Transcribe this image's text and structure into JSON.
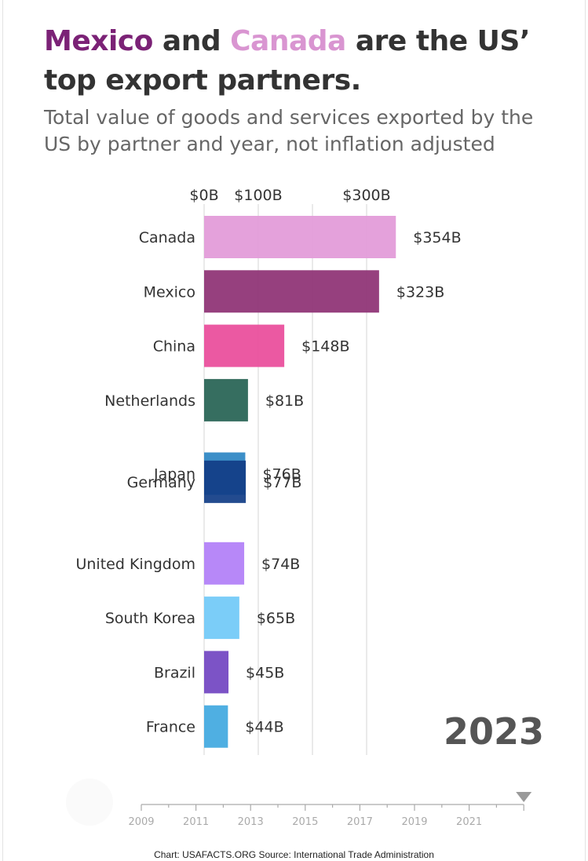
{
  "header": {
    "title_highlight_1": "Mexico",
    "title_connector": " and ",
    "title_highlight_2": "Canada",
    "title_rest": " are the US’ top export partners.",
    "subtitle": "Total value of goods and services exported by the US by partner and year, not inflation adjusted",
    "colors": {
      "mexico": "#7b2276",
      "canada": "#d995d1"
    }
  },
  "chart_data": {
    "type": "bar",
    "orientation": "horizontal",
    "year": "2023",
    "x_ticks": [
      {
        "value": 0,
        "label": "$0B"
      },
      {
        "value": 100,
        "label": "$100B"
      },
      {
        "value": 200,
        "label": ""
      },
      {
        "value": 300,
        "label": "$300B"
      }
    ],
    "xlim": [
      0,
      354
    ],
    "grid": true,
    "bars": [
      {
        "name": "Canada",
        "value": 354,
        "label": "$354B",
        "color": "#e29ad8",
        "slot": 0
      },
      {
        "name": "Mexico",
        "value": 323,
        "label": "$323B",
        "color": "#8e3174",
        "slot": 1
      },
      {
        "name": "China",
        "value": 148,
        "label": "$148B",
        "color": "#ea4c9b",
        "slot": 2
      },
      {
        "name": "Netherlands",
        "value": 81,
        "label": "$81B",
        "color": "#276354",
        "slot": 3
      },
      {
        "name": "Japan",
        "value": 76,
        "label": "$76B",
        "color": "#2d87c4",
        "slot": 4.35
      },
      {
        "name": "Germany",
        "value": 77,
        "label": "$77B",
        "color": "#123d86",
        "slot": 4.5
      },
      {
        "name": "United Kingdom",
        "value": 74,
        "label": "$74B",
        "color": "#b17ff8",
        "slot": 6
      },
      {
        "name": "South Korea",
        "value": 65,
        "label": "$65B",
        "color": "#71c9f8",
        "slot": 7
      },
      {
        "name": "Brazil",
        "value": 45,
        "label": "$45B",
        "color": "#7246c2",
        "slot": 8
      },
      {
        "name": "France",
        "value": 44,
        "label": "$44B",
        "color": "#42a9e0",
        "slot": 9
      }
    ]
  },
  "timeline": {
    "labels": [
      "2009",
      "2011",
      "2013",
      "2015",
      "2017",
      "2019",
      "2021"
    ],
    "start_year": 2009,
    "end_year": 2023,
    "current_year": 2023
  },
  "footer": {
    "text": "Chart: USAFACTS.ORG Source: International Trade Administration"
  }
}
